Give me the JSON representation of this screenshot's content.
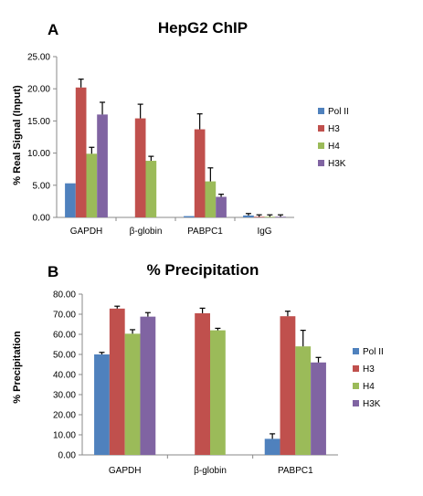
{
  "colors": {
    "pol2": "#4f81bd",
    "h3": "#c0504d",
    "h4": "#9bbb59",
    "h3k": "#8064a2"
  },
  "chart_data": [
    {
      "type": "bar",
      "panel": "A",
      "title": "HepG2 ChIP",
      "ylabel": "% Real Signal (Input)",
      "xlabel": "",
      "ylim": [
        0,
        25
      ],
      "yticks": [
        "0.00",
        "5.00",
        "10.00",
        "15.00",
        "20.00",
        "25.00"
      ],
      "categories": [
        "GAPDH",
        "β-globin",
        "PABPC1",
        "IgG"
      ],
      "legend_position": "right",
      "grid": false,
      "series": [
        {
          "name": "Pol II",
          "values": [
            5.3,
            0,
            0.2,
            0.3
          ],
          "errors": [
            0,
            0,
            0,
            0.3
          ]
        },
        {
          "name": "H3",
          "values": [
            20.2,
            15.4,
            13.7,
            0.1
          ],
          "errors": [
            1.3,
            2.2,
            2.4,
            0.3
          ]
        },
        {
          "name": "H4",
          "values": [
            9.9,
            8.8,
            5.6,
            0.1
          ],
          "errors": [
            1.0,
            0.7,
            2.1,
            0.3
          ]
        },
        {
          "name": "H3K",
          "values": [
            16.0,
            0,
            3.2,
            0.1
          ],
          "errors": [
            1.9,
            0,
            0.4,
            0.3
          ]
        }
      ]
    },
    {
      "type": "bar",
      "panel": "B",
      "title": "% Precipitation",
      "ylabel": "% Precipitation",
      "xlabel": "",
      "ylim": [
        0,
        80
      ],
      "yticks": [
        "0.00",
        "10.00",
        "20.00",
        "30.00",
        "40.00",
        "50.00",
        "60.00",
        "70.00",
        "80.00"
      ],
      "categories": [
        "GAPDH",
        "β-globin",
        "PABPC1"
      ],
      "legend_position": "right",
      "grid": false,
      "series": [
        {
          "name": "Pol II",
          "values": [
            50.0,
            0,
            8.0
          ],
          "errors": [
            1.0,
            0,
            2.5
          ]
        },
        {
          "name": "H3",
          "values": [
            72.8,
            70.5,
            69.0
          ],
          "errors": [
            1.2,
            2.5,
            2.5
          ]
        },
        {
          "name": "H4",
          "values": [
            60.3,
            62.0,
            54.0
          ],
          "errors": [
            2.0,
            1.0,
            8.0
          ]
        },
        {
          "name": "H3K",
          "values": [
            68.8,
            0,
            46.0
          ],
          "errors": [
            2.0,
            0,
            2.5
          ]
        }
      ]
    }
  ]
}
